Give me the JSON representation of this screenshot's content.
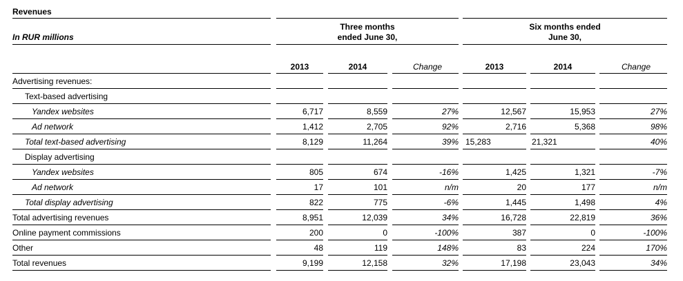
{
  "title": "Revenues",
  "unit_label": "In RUR millions",
  "group_headers": {
    "three_months": [
      "Three months",
      "ended June 30,"
    ],
    "six_months": [
      "Six months ended",
      "June 30,"
    ]
  },
  "columns": [
    "2013",
    "2014",
    "Change",
    "2013",
    "2014",
    "Change"
  ],
  "rows": [
    {
      "label": "Advertising revenues:",
      "style": "plain",
      "indent": 0,
      "values": [
        "",
        "",
        "",
        "",
        "",
        ""
      ]
    },
    {
      "label": "Text-based advertising",
      "style": "plain",
      "indent": 1,
      "values": [
        "",
        "",
        "",
        "",
        "",
        ""
      ]
    },
    {
      "label": "Yandex websites",
      "style": "italic",
      "indent": 2,
      "values": [
        "6,717",
        "8,559",
        "27%",
        "12,567",
        "15,953",
        "27%"
      ]
    },
    {
      "label": "Ad network",
      "style": "italic",
      "indent": 2,
      "values": [
        "1,412",
        "2,705",
        "92%",
        "2,716",
        "5,368",
        "98%"
      ]
    },
    {
      "label": "Total text-based advertising",
      "style": "italic",
      "indent": 1,
      "values": [
        "8,129",
        "11,264",
        "39%",
        "15,283",
        "21,321",
        "40%"
      ]
    },
    {
      "label": "Display advertising",
      "style": "plain",
      "indent": 1,
      "values": [
        "",
        "",
        "",
        "",
        "",
        ""
      ]
    },
    {
      "label": "Yandex websites",
      "style": "italic",
      "indent": 2,
      "values": [
        "805",
        "674",
        "-16%",
        "1,425",
        "1,321",
        "-7%"
      ]
    },
    {
      "label": "Ad network",
      "style": "italic",
      "indent": 2,
      "values": [
        "17",
        "101",
        "n/m",
        "20",
        "177",
        "n/m"
      ]
    },
    {
      "label": "Total display advertising",
      "style": "italic",
      "indent": 1,
      "values": [
        "822",
        "775",
        "-6%",
        "1,445",
        "1,498",
        "4%"
      ]
    },
    {
      "label": "Total advertising revenues",
      "style": "plain",
      "indent": 0,
      "values": [
        "8,951",
        "12,039",
        "34%",
        "16,728",
        "22,819",
        "36%"
      ]
    },
    {
      "label": "Online payment commissions",
      "style": "plain",
      "indent": 0,
      "values": [
        "200",
        "0",
        "-100%",
        "387",
        "0",
        "-100%"
      ]
    },
    {
      "label": "Other",
      "style": "plain",
      "indent": 0,
      "values": [
        "48",
        "119",
        "148%",
        "83",
        "224",
        "170%"
      ]
    },
    {
      "label": "Total revenues",
      "style": "plain",
      "indent": 0,
      "values": [
        "9,199",
        "12,158",
        "32%",
        "17,198",
        "23,043",
        "34%"
      ]
    }
  ]
}
